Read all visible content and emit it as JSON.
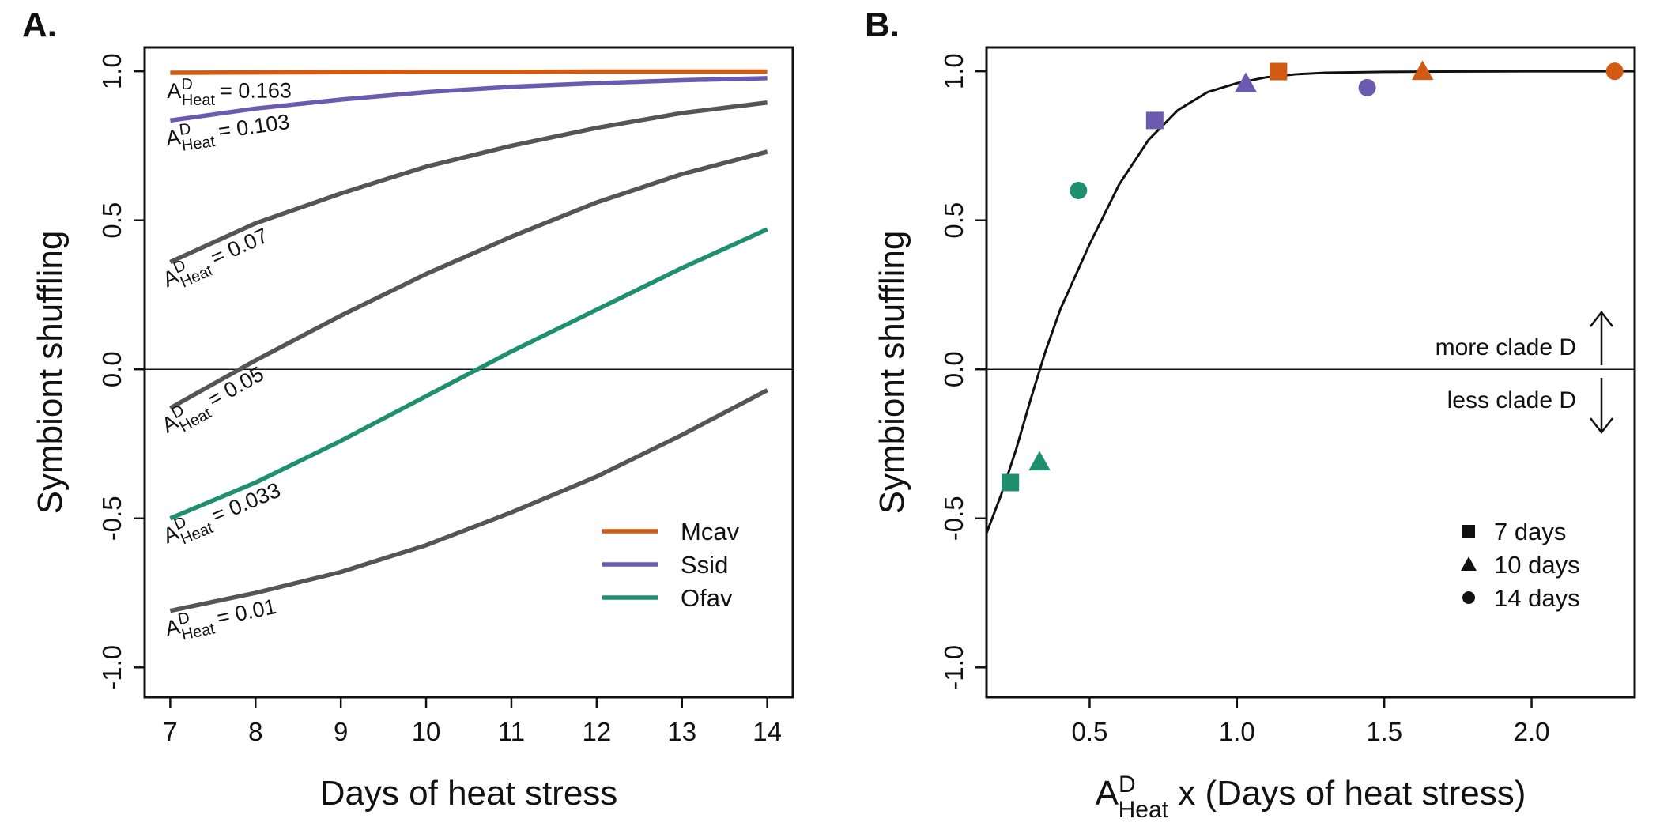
{
  "chart_data": [
    {
      "panel": "A.",
      "type": "line",
      "xlabel": "Days of heat stress",
      "ylabel": "Symbiont shuffling",
      "xlim": [
        6.7,
        14.3
      ],
      "ylim": [
        -1.1,
        1.08
      ],
      "xticks": [
        "7",
        "8",
        "9",
        "10",
        "11",
        "12",
        "13",
        "14"
      ],
      "yticks": [
        "-1.0",
        "-0.5",
        "0.0",
        "0.5",
        "1.0"
      ],
      "reference_line_y": 0,
      "grid": false,
      "legend_position": "bottom-right",
      "x": [
        7,
        8,
        9,
        10,
        11,
        12,
        13,
        14
      ],
      "series": [
        {
          "name": "",
          "label": "= 0.163",
          "color": "#d35a12",
          "values": [
            0.995,
            0.996,
            0.997,
            0.998,
            0.998,
            0.999,
            0.999,
            0.999
          ]
        },
        {
          "name": "",
          "label": "= 0.103",
          "color": "#6a5bb0",
          "values": [
            0.835,
            0.875,
            0.905,
            0.93,
            0.948,
            0.96,
            0.97,
            0.977
          ]
        },
        {
          "name": "",
          "label": "= 0.07",
          "color": "#555555",
          "values": [
            0.36,
            0.49,
            0.59,
            0.68,
            0.75,
            0.81,
            0.86,
            0.895
          ]
        },
        {
          "name": "",
          "label": "= 0.05",
          "color": "#555555",
          "values": [
            -0.13,
            0.03,
            0.18,
            0.32,
            0.445,
            0.56,
            0.655,
            0.73
          ]
        },
        {
          "name": "",
          "label": "= 0.033",
          "color": "#1e9070",
          "values": [
            -0.5,
            -0.38,
            -0.24,
            -0.09,
            0.06,
            0.2,
            0.34,
            0.47
          ]
        },
        {
          "name": "",
          "label": "= 0.01",
          "color": "#555555",
          "values": [
            -0.81,
            -0.75,
            -0.68,
            -0.59,
            -0.48,
            -0.36,
            -0.22,
            -0.07
          ]
        }
      ],
      "legend": [
        {
          "name": "Mcav",
          "color": "#d35a12"
        },
        {
          "name": "Ssid",
          "color": "#6a5bb0"
        },
        {
          "name": "Ofav",
          "color": "#1e9070"
        }
      ]
    },
    {
      "panel": "B.",
      "type": "scatter",
      "xlabel_suffix": " x (Days of heat stress)",
      "ylabel": "Symbiont shuffling",
      "xlim": [
        0.15,
        2.35
      ],
      "ylim": [
        -1.1,
        1.08
      ],
      "xticks": [
        "0.5",
        "1.0",
        "1.5",
        "2.0"
      ],
      "yticks": [
        "-1.0",
        "-0.5",
        "0.0",
        "0.5",
        "1.0"
      ],
      "reference_line_y": 0,
      "grid": false,
      "legend_position": "bottom-right",
      "fit_curve": {
        "x": [
          0.15,
          0.2,
          0.25,
          0.3,
          0.35,
          0.4,
          0.5,
          0.6,
          0.7,
          0.8,
          0.9,
          1.0,
          1.1,
          1.2,
          1.3,
          1.5,
          1.7,
          2.0,
          2.35
        ],
        "y": [
          -0.55,
          -0.42,
          -0.27,
          -0.1,
          0.06,
          0.2,
          0.42,
          0.62,
          0.77,
          0.87,
          0.93,
          0.96,
          0.98,
          0.99,
          0.995,
          0.998,
          0.999,
          1.0,
          1.0
        ]
      },
      "points": [
        {
          "x": 0.231,
          "y": -0.38,
          "shape": "square",
          "color": "#1e9070"
        },
        {
          "x": 0.33,
          "y": -0.31,
          "shape": "triangle",
          "color": "#1e9070"
        },
        {
          "x": 0.462,
          "y": 0.6,
          "shape": "circle",
          "color": "#1e9070"
        },
        {
          "x": 0.721,
          "y": 0.835,
          "shape": "square",
          "color": "#6a5bb0"
        },
        {
          "x": 1.03,
          "y": 0.96,
          "shape": "triangle",
          "color": "#6a5bb0"
        },
        {
          "x": 1.442,
          "y": 0.945,
          "shape": "circle",
          "color": "#6a5bb0"
        },
        {
          "x": 1.141,
          "y": 0.999,
          "shape": "square",
          "color": "#d35a12"
        },
        {
          "x": 1.63,
          "y": 1.0,
          "shape": "triangle",
          "color": "#d35a12"
        },
        {
          "x": 2.282,
          "y": 1.0,
          "shape": "circle",
          "color": "#d35a12"
        }
      ],
      "legend": [
        {
          "name": "7 days",
          "shape": "square"
        },
        {
          "name": "10 days",
          "shape": "triangle"
        },
        {
          "name": "14 days",
          "shape": "circle"
        }
      ],
      "annotations": {
        "up": "more clade D",
        "down": "less clade D"
      }
    }
  ]
}
